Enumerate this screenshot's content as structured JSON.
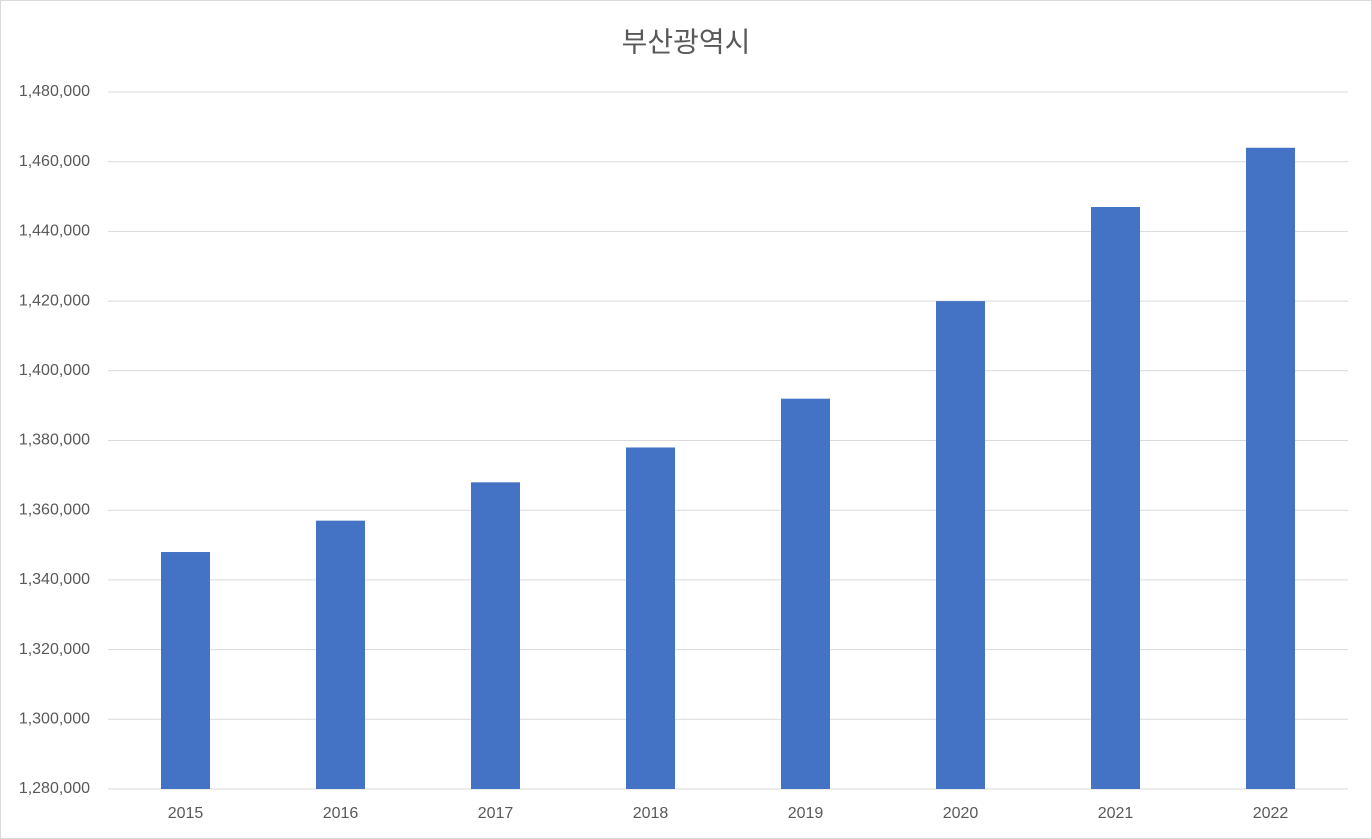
{
  "chart_data": {
    "type": "bar",
    "title": "부산광역시",
    "categories": [
      "2015",
      "2016",
      "2017",
      "2018",
      "2019",
      "2020",
      "2021",
      "2022"
    ],
    "values": [
      1348000,
      1357000,
      1368000,
      1378000,
      1392000,
      1420000,
      1447000,
      1464000
    ],
    "color": "#4472c4",
    "ylim": [
      1280000,
      1480000
    ],
    "yticks": [
      {
        "value": 1280000,
        "label": "1,280,000"
      },
      {
        "value": 1300000,
        "label": "1,300,000"
      },
      {
        "value": 1320000,
        "label": "1,320,000"
      },
      {
        "value": 1340000,
        "label": "1,340,000"
      },
      {
        "value": 1360000,
        "label": "1,360,000"
      },
      {
        "value": 1380000,
        "label": "1,380,000"
      },
      {
        "value": 1400000,
        "label": "1,400,000"
      },
      {
        "value": 1420000,
        "label": "1,420,000"
      },
      {
        "value": 1440000,
        "label": "1,440,000"
      },
      {
        "value": 1460000,
        "label": "1,460,000"
      },
      {
        "value": 1480000,
        "label": "1,480,000"
      }
    ],
    "grid": true
  }
}
